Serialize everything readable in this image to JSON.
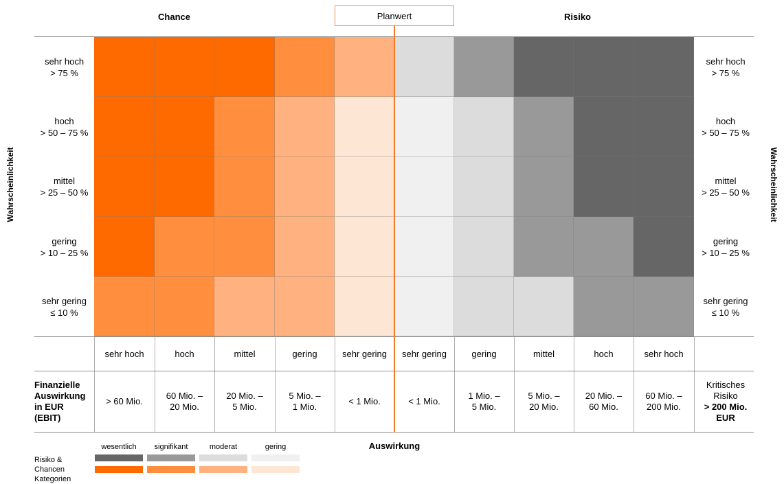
{
  "header": {
    "chance": "Chance",
    "planwert": "Planwert",
    "risiko": "Risiko"
  },
  "side_label": "Wahrscheinlichkeit",
  "probability_rows": [
    {
      "name": "sehr hoch",
      "range": "> 75 %"
    },
    {
      "name": "hoch",
      "range": "> 50 – 75 %"
    },
    {
      "name": "mittel",
      "range": "> 25 – 50 %"
    },
    {
      "name": "gering",
      "range": "> 10 – 25 %"
    },
    {
      "name": "sehr gering",
      "range": "≤ 10 %"
    }
  ],
  "grid_levels": [
    [
      4,
      4,
      4,
      3,
      2,
      2,
      3,
      4,
      4,
      4
    ],
    [
      4,
      4,
      3,
      2,
      1,
      1,
      2,
      3,
      4,
      4
    ],
    [
      4,
      4,
      3,
      2,
      1,
      1,
      2,
      3,
      4,
      4
    ],
    [
      4,
      3,
      3,
      2,
      1,
      1,
      2,
      3,
      3,
      4
    ],
    [
      3,
      3,
      2,
      2,
      1,
      1,
      2,
      2,
      3,
      3
    ]
  ],
  "impact_labels": [
    "sehr hoch",
    "hoch",
    "mittel",
    "gering",
    "sehr gering",
    "sehr gering",
    "gering",
    "mittel",
    "hoch",
    "sehr hoch"
  ],
  "financial": {
    "left_label_lines": [
      "Finanzielle",
      "Auswirkung",
      "in EUR",
      "(EBIT)"
    ],
    "values": [
      "> 60 Mio.",
      "60 Mio. –\n20 Mio.",
      "20 Mio. –\n5 Mio.",
      "5 Mio. –\n1 Mio.",
      "< 1 Mio.",
      "< 1 Mio.",
      "1 Mio. –\n5 Mio.",
      "5 Mio. –\n20 Mio.",
      "20 Mio. –\n60 Mio.",
      "60 Mio. –\n200 Mio."
    ],
    "right_label_normal": "Kritisches\nRisiko",
    "right_label_bold": "> 200 Mio.\nEUR"
  },
  "footer_label": "Auswirkung",
  "legend": {
    "side_lines": [
      "Risiko &",
      "Chancen",
      "Kategorien"
    ],
    "categories": [
      "wesentlich",
      "signifikant",
      "moderat",
      "gering"
    ],
    "risk_colors": [
      "#666666",
      "#999999",
      "#dcdcdc",
      "#f0f0f0"
    ],
    "chance_colors": [
      "#ff6a00",
      "#ff8f3e",
      "#ffb27f",
      "#fde6d4"
    ]
  }
}
